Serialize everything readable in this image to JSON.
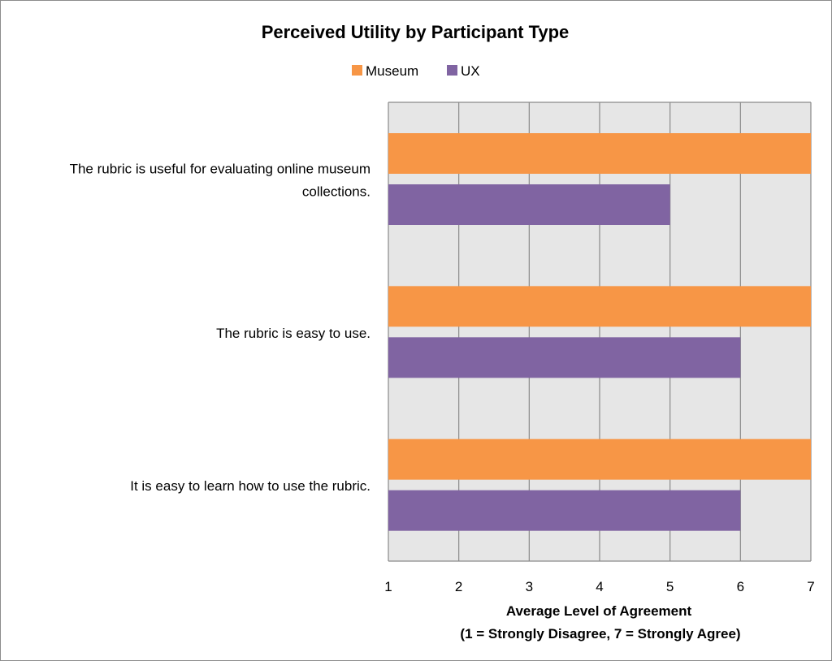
{
  "chart_data": {
    "type": "bar",
    "orientation": "horizontal",
    "title": "Perceived Utility by Participant Type",
    "xlabel_line1": "Average Level of Agreement",
    "xlabel_line2": "(1 = Strongly Disagree, 7 = Strongly Agree)",
    "ylabel": "",
    "xlim": [
      1,
      7
    ],
    "xticks": [
      1,
      2,
      3,
      4,
      5,
      6,
      7
    ],
    "grid": true,
    "legend_position": "top",
    "categories": [
      [
        "The rubric is useful for evaluating online museum",
        "collections."
      ],
      [
        "The rubric is easy to use."
      ],
      [
        "It is easy to learn how to use the rubric."
      ]
    ],
    "series": [
      {
        "name": "Museum",
        "color": "#f79646",
        "values": [
          7,
          7,
          7
        ]
      },
      {
        "name": "UX",
        "color": "#8064a2",
        "values": [
          5,
          6,
          6
        ]
      }
    ],
    "colors": {
      "plot_background": "#e6e6e6",
      "gridline": "#8a8a8a"
    }
  }
}
